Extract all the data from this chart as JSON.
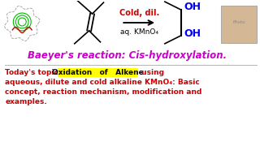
{
  "bg_color": "#ffffff",
  "title_text": "Baeyer's reaction: Cis-hydroxylation.",
  "title_color": "#cc00cc",
  "title_fontsize": 8.5,
  "cold_dil_text": "Cold, dil.",
  "cold_dil_color": "#cc0000",
  "kmno4_text": "aq. KMnO₄",
  "kmno4_color": "#000000",
  "oh_color": "#0000ee",
  "body_color": "#cc0000",
  "body_text1": "Today's topic:  ",
  "highlight_text": "Oxidation   of   Alkene",
  "highlight_bg": "#ffff00",
  "body_text2": " using",
  "body_text3": "aqueous, dilute and cold alkaline KMnO₄: Basic",
  "body_text4": "concept, reaction mechanism, modification and",
  "body_text5": "examples.",
  "body_fontsize": 6.5,
  "arrow_color": "#000000",
  "logo_outer_color": "#999999",
  "logo_ring_color": "#00bb00",
  "logo_wave_color": "#cc0000"
}
